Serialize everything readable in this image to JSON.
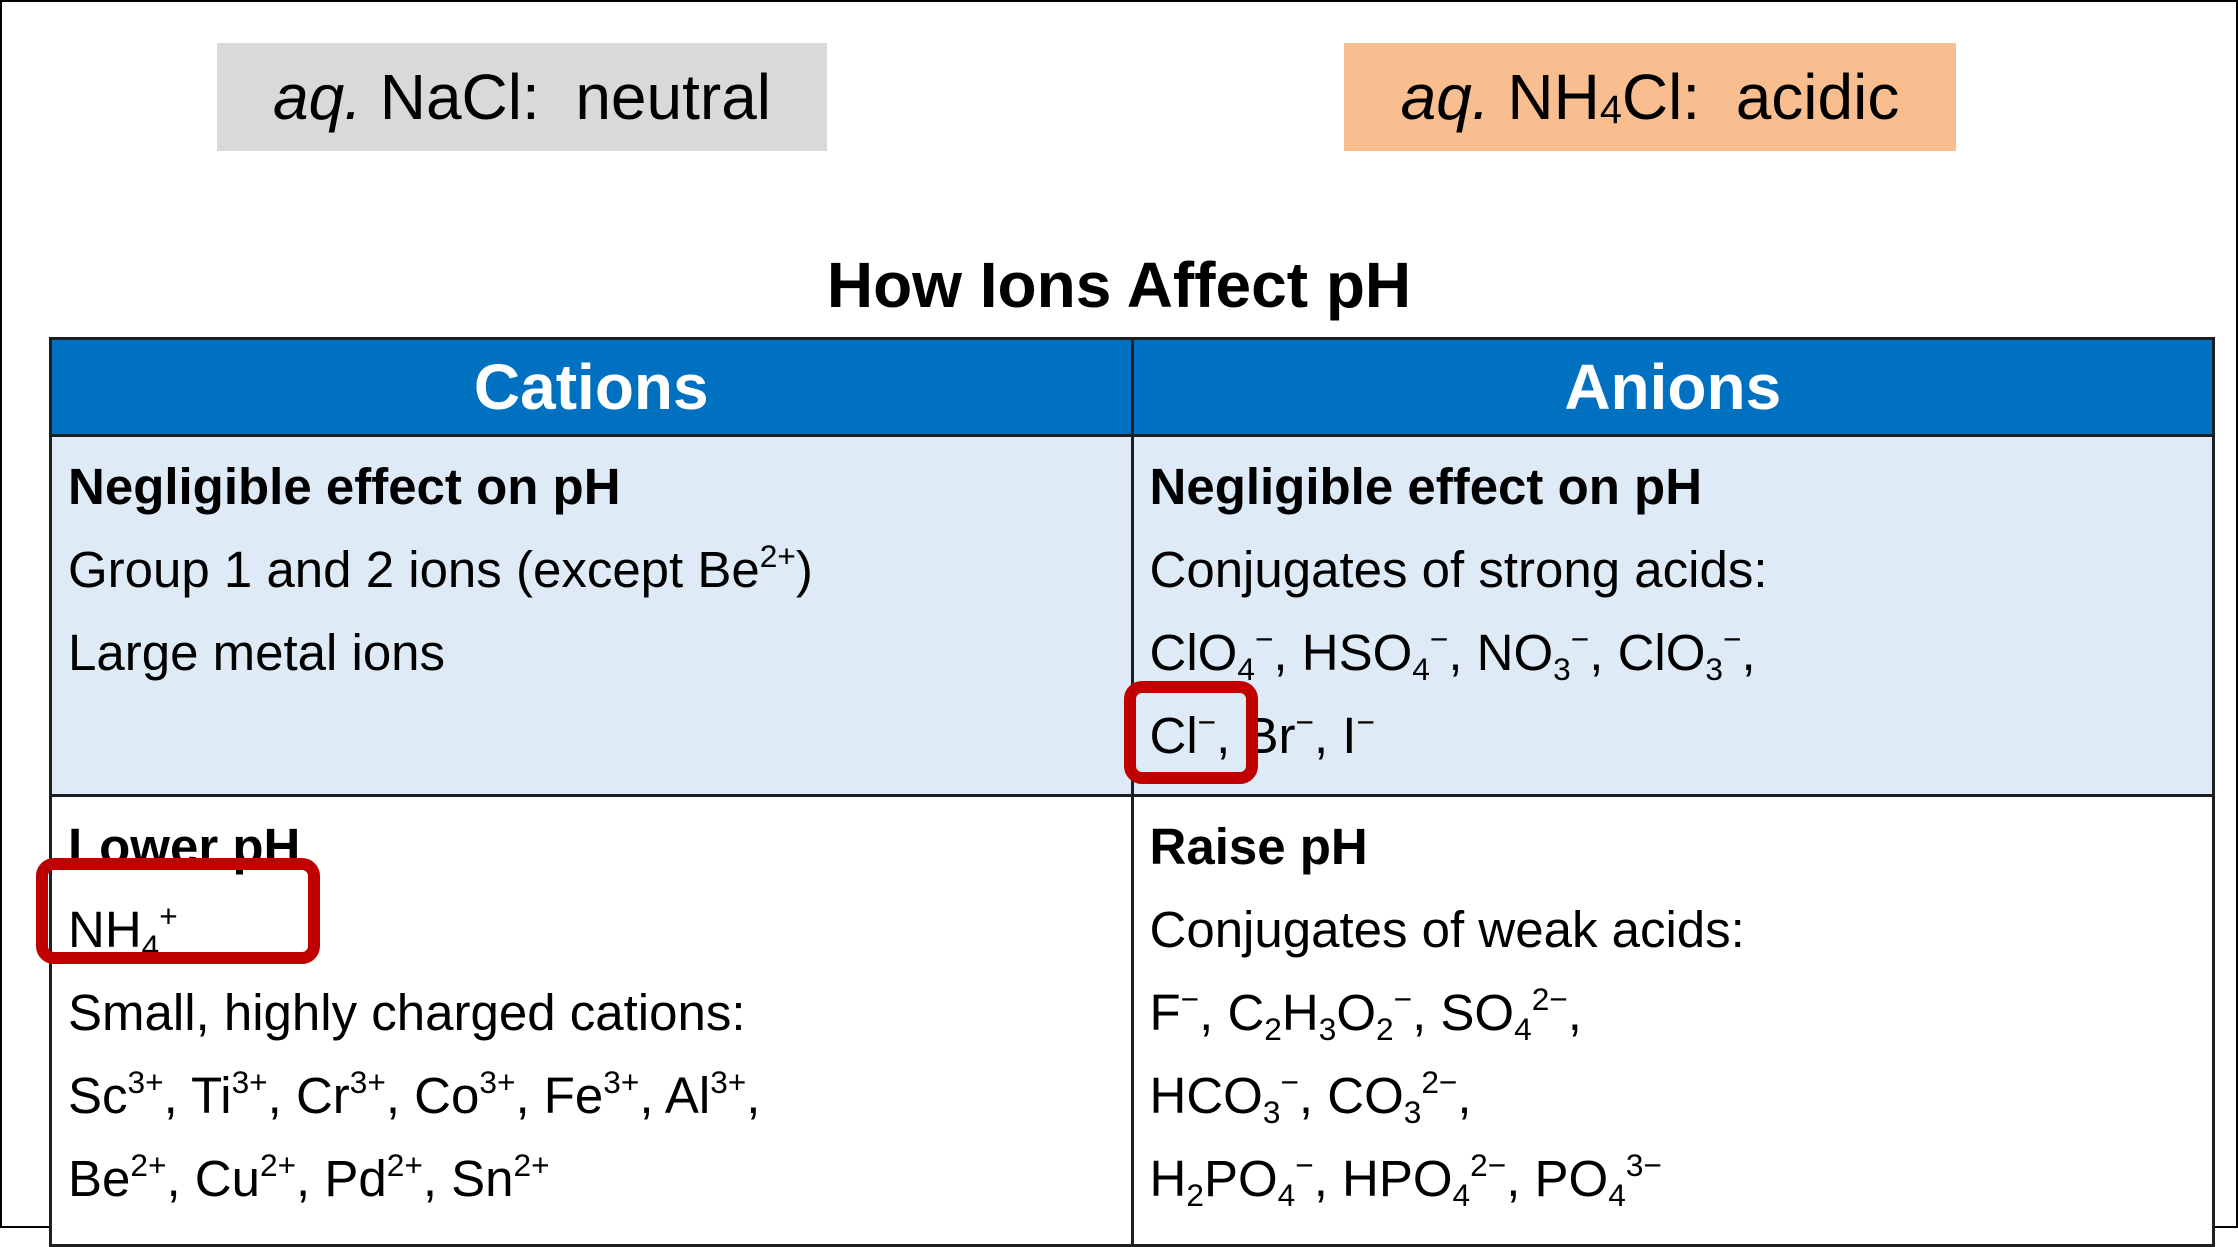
{
  "labels": {
    "left": {
      "italic": "aq.",
      "text": " NaCl:  neutral"
    },
    "right": {
      "italic": "aq.",
      "pre": " NH",
      "sub": "4",
      "post": "Cl:  acidic"
    }
  },
  "title": "How Ions Affect pH",
  "table": {
    "headers": {
      "cations": "Cations",
      "anions": "Anions"
    },
    "cations_negligible": {
      "heading": "Negligible effect on pH",
      "line1": "Group 1 and 2 ions (except Be",
      "line1_sup": "2+",
      "line1_end": ")",
      "line2": "Large metal ions"
    },
    "anions_negligible": {
      "heading": "Negligible effect on pH",
      "line1": "Conjugates of strong acids:",
      "ions_line2": [
        "ClO",
        "4",
        "−",
        ", HSO",
        "4",
        "−",
        ", NO",
        "3",
        "−",
        ", ClO",
        "3",
        "−",
        ","
      ],
      "ions_line3": {
        "cl": "Cl",
        "cl_sup": "−",
        "rest1": ", Br",
        "br_sup": "−",
        "rest2": ", I",
        "i_sup": "−"
      }
    },
    "cations_lower": {
      "heading": "Lower pH",
      "nh": "NH",
      "nh_sub": "4",
      "nh_sup": "+",
      "line3": "Small, highly charged cations:",
      "line4": [
        "Sc",
        "3+",
        ", Ti",
        "3+",
        ", Cr",
        "3+",
        ", Co",
        "3+",
        ", Fe",
        "3+",
        ", Al",
        "3+",
        ","
      ],
      "line5": [
        "Be",
        "2+",
        ", Cu",
        "2+",
        ", Pd",
        "2+",
        ", Sn",
        "2+"
      ]
    },
    "anions_raise": {
      "heading": "Raise pH",
      "line2": "Conjugates of weak acids:",
      "line3": [
        "F",
        "−",
        ", C",
        "2",
        "H",
        "3",
        "O",
        "2",
        "−",
        ", SO",
        "4",
        "2−",
        ","
      ],
      "line4": [
        "HCO",
        "3",
        "−",
        ", CO",
        "3",
        "2−",
        ","
      ],
      "line5": [
        "H",
        "2",
        "PO",
        "4",
        "−",
        ", HPO",
        "4",
        "2−",
        ", PO",
        "4",
        "3−"
      ]
    }
  },
  "colors": {
    "header_bg": "#0070c0",
    "neg_row_bg": "#deebf7",
    "highlight": "#c00000",
    "neutral_bg": "#d9d9d9",
    "acidic_bg": "#f8be90"
  }
}
